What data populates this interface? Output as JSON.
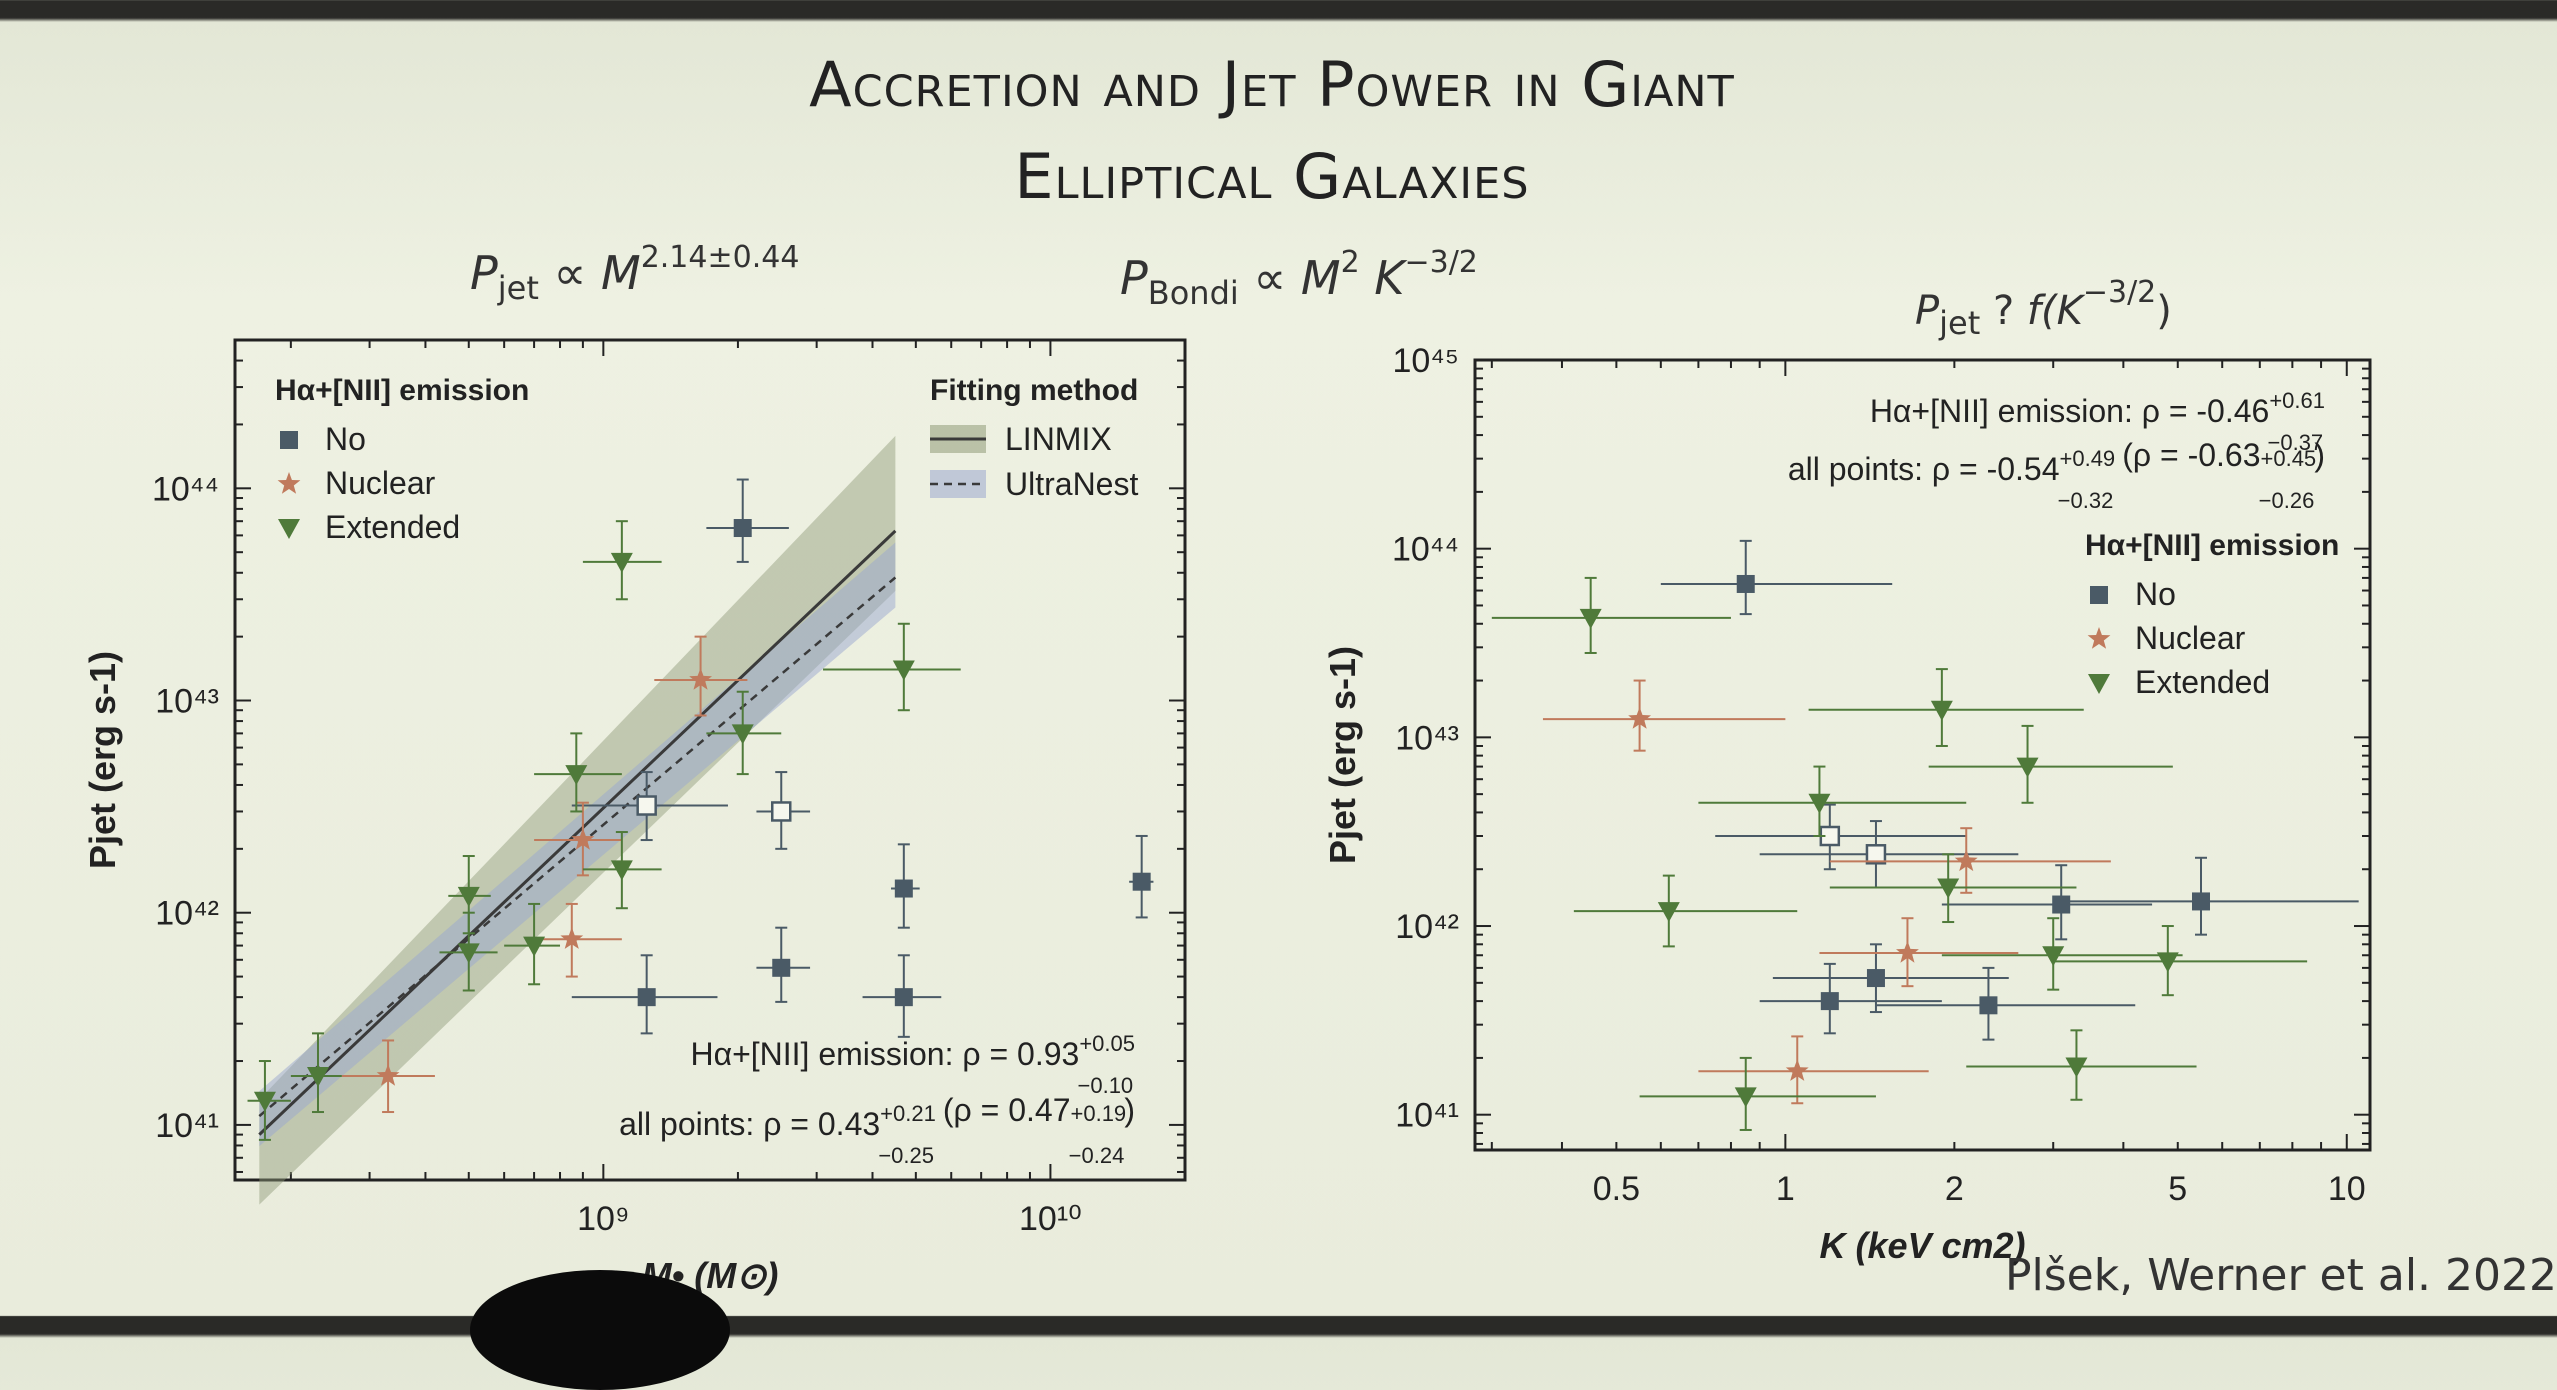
{
  "slide": {
    "title_line1": "Accretion and Jet Power in Giant",
    "title_line2": "Elliptical Galaxies",
    "eq_left": {
      "p": "P",
      "sub": "jet",
      "rel": " ∝ ",
      "m": "M",
      "sup": "2.14±0.44"
    },
    "eq_mid": {
      "p": "P",
      "sub": "Bondi",
      "rel": " ∝ ",
      "m": "M",
      "sup1": "2",
      "k": " K",
      "sup2": "−3/2"
    },
    "eq_right": {
      "p": "P",
      "sub": "jet",
      "q": " ? ",
      "f": "f(K",
      "sup": "−3/2",
      "close": ")"
    },
    "credit": "Plšek, Werner et al. 2022"
  },
  "colors": {
    "No": "#4a5a66",
    "Nuclear": "#c07a5c",
    "Extended": "#4f7a3a",
    "fit": "#3a3a3a"
  },
  "chart_data": [
    {
      "type": "scatter",
      "xlabel": "M• (M⊙)",
      "ylabel": "Pjet (erg s-1)",
      "x_log": true,
      "y_log": true,
      "xlim": [
        150000000.0,
        20000000000.0
      ],
      "ylim": [
        5.5e+40,
        5e+44
      ],
      "x_ticks": [
        {
          "v": 1000000000.0,
          "label": "10⁹"
        },
        {
          "v": 10000000000.0,
          "label": "10¹⁰"
        }
      ],
      "y_ticks": [
        {
          "v": 1e+41,
          "label": "10⁴¹"
        },
        {
          "v": 1e+42,
          "label": "10⁴²"
        },
        {
          "v": 1e+43,
          "label": "10⁴³"
        },
        {
          "v": 1e+44,
          "label": "10⁴⁴"
        }
      ],
      "legend_title": "Hα+[NII] emission",
      "legend_entries": [
        {
          "name": "No",
          "marker": "square"
        },
        {
          "name": "Nuclear",
          "marker": "star"
        },
        {
          "name": "Extended",
          "marker": "triangle"
        }
      ],
      "fit_legend_title": "Fitting method",
      "fit_legend_entries": [
        "LINMIX",
        "UltraNest"
      ],
      "annotation1": {
        "text": "Hα+[NII] emission: ρ = 0.93",
        "sup": "+0.05",
        "sub": "−0.10"
      },
      "annotation2": {
        "text": "all points: ρ = 0.43",
        "sup": "+0.21",
        "sub": "−0.25",
        "text2": " (ρ = 0.47",
        "sup2": "+0.19",
        "sub2": "−0.24",
        "close": ")"
      },
      "fit_linmix": {
        "x": [
          170000000.0,
          4500000000.0
        ],
        "y": [
          9e+40,
          6.3e+43
        ]
      },
      "fit_ultranest": {
        "x": [
          170000000.0,
          4500000000.0
        ],
        "y": [
          1.1e+41,
          3.8e+43
        ]
      },
      "points": [
        {
          "group": "No",
          "x": 2050000000.0,
          "y": 6.5e+43,
          "xerr": [
            1700000000.0,
            2600000000.0
          ],
          "yerr": [
            4.5e+43,
            1.1e+44
          ]
        },
        {
          "group": "No",
          "x": 1250000000.0,
          "y": 4e+41,
          "xerr": [
            850000000.0,
            1800000000.0
          ],
          "yerr": [
            2.7e+41,
            6.3e+41
          ]
        },
        {
          "group": "No",
          "x": 2500000000.0,
          "y": 5.5e+41,
          "xerr": [
            2200000000.0,
            2900000000.0
          ],
          "yerr": [
            3.8e+41,
            8.5e+41
          ]
        },
        {
          "group": "No",
          "x": 4700000000.0,
          "y": 1.3e+42,
          "xerr": [
            4400000000.0,
            5100000000.0
          ],
          "yerr": [
            8.5e+41,
            2.1e+42
          ]
        },
        {
          "group": "No",
          "x": 4700000000.0,
          "y": 4e+41,
          "xerr": [
            3800000000.0,
            5700000000.0
          ],
          "yerr": [
            2.6e+41,
            6.3e+41
          ]
        },
        {
          "group": "No",
          "x": 16000000000.0,
          "y": 1.4e+42,
          "xerr": [
            15000000000.0,
            17000000000.0
          ],
          "yerr": [
            9.5e+41,
            2.3e+42
          ]
        },
        {
          "group": "No_open",
          "x": 1250000000.0,
          "y": 3.2e+42,
          "xerr": [
            850000000.0,
            1900000000.0
          ],
          "yerr": [
            2.2e+42,
            4.6e+42
          ]
        },
        {
          "group": "No_open",
          "x": 2500000000.0,
          "y": 3e+42,
          "xerr": [
            2200000000.0,
            2900000000.0
          ],
          "yerr": [
            2e+42,
            4.6e+42
          ]
        },
        {
          "group": "Nuclear",
          "x": 1650000000.0,
          "y": 1.25e+43,
          "xerr": [
            1300000000.0,
            2100000000.0
          ],
          "yerr": [
            8.5e+42,
            2e+43
          ]
        },
        {
          "group": "Nuclear",
          "x": 900000000.0,
          "y": 2.2e+42,
          "xerr": [
            700000000.0,
            1100000000.0
          ],
          "yerr": [
            1.5e+42,
            3.3e+42
          ]
        },
        {
          "group": "Nuclear",
          "x": 850000000.0,
          "y": 7.5e+41,
          "xerr": [
            680000000.0,
            1100000000.0
          ],
          "yerr": [
            5e+41,
            1.1e+42
          ]
        },
        {
          "group": "Nuclear",
          "x": 330000000.0,
          "y": 1.7e+41,
          "xerr": [
            260000000.0,
            420000000.0
          ],
          "yerr": [
            1.15e+41,
            2.5e+41
          ]
        },
        {
          "group": "Extended",
          "x": 1100000000.0,
          "y": 4.5e+43,
          "xerr": [
            900000000.0,
            1350000000.0
          ],
          "yerr": [
            3e+43,
            7e+43
          ]
        },
        {
          "group": "Extended",
          "x": 4700000000.0,
          "y": 1.4e+43,
          "xerr": [
            3100000000.0,
            6300000000.0
          ],
          "yerr": [
            9e+42,
            2.3e+43
          ]
        },
        {
          "group": "Extended",
          "x": 2050000000.0,
          "y": 7e+42,
          "xerr": [
            1700000000.0,
            2500000000.0
          ],
          "yerr": [
            4.5e+42,
            1.1e+43
          ]
        },
        {
          "group": "Extended",
          "x": 870000000.0,
          "y": 4.5e+42,
          "xerr": [
            700000000.0,
            1100000000.0
          ],
          "yerr": [
            3e+42,
            7e+42
          ]
        },
        {
          "group": "Extended",
          "x": 1100000000.0,
          "y": 1.6e+42,
          "xerr": [
            900000000.0,
            1350000000.0
          ],
          "yerr": [
            1.05e+42,
            2.4e+42
          ]
        },
        {
          "group": "Extended",
          "x": 500000000.0,
          "y": 1.2e+42,
          "xerr": [
            450000000.0,
            560000000.0
          ],
          "yerr": [
            8e+41,
            1.85e+42
          ]
        },
        {
          "group": "Extended",
          "x": 500000000.0,
          "y": 6.5e+41,
          "xerr": [
            430000000.0,
            580000000.0
          ],
          "yerr": [
            4.3e+41,
            1e+42
          ]
        },
        {
          "group": "Extended",
          "x": 700000000.0,
          "y": 7e+41,
          "xerr": [
            600000000.0,
            800000000.0
          ],
          "yerr": [
            4.6e+41,
            1.1e+42
          ]
        },
        {
          "group": "Extended",
          "x": 230000000.0,
          "y": 1.7e+41,
          "xerr": [
            200000000.0,
            260000000.0
          ],
          "yerr": [
            1.15e+41,
            2.7e+41
          ]
        },
        {
          "group": "Extended",
          "x": 175000000.0,
          "y": 1.3e+41,
          "xerr": [
            160000000.0,
            200000000.0
          ],
          "yerr": [
            8.5e+40,
            2e+41
          ]
        }
      ]
    },
    {
      "type": "scatter",
      "xlabel": "K (keV cm2)",
      "ylabel": "Pjet (erg s-1)",
      "x_log": true,
      "y_log": true,
      "xlim": [
        0.28,
        11
      ],
      "ylim": [
        6.5e+40,
        1e+45
      ],
      "x_ticks": [
        {
          "v": 0.5,
          "label": "0.5"
        },
        {
          "v": 1,
          "label": "1"
        },
        {
          "v": 2,
          "label": "2"
        },
        {
          "v": 5,
          "label": "5"
        },
        {
          "v": 10,
          "label": "10"
        }
      ],
      "y_ticks": [
        {
          "v": 1e+41,
          "label": "10⁴¹"
        },
        {
          "v": 1e+42,
          "label": "10⁴²"
        },
        {
          "v": 1e+43,
          "label": "10⁴³"
        },
        {
          "v": 1e+44,
          "label": "10⁴⁴"
        },
        {
          "v": 1e+45,
          "label": "10⁴⁵"
        }
      ],
      "annotation1": {
        "text": "Hα+[NII] emission: ρ = -0.46",
        "sup": "+0.61",
        "sub": "−0.37"
      },
      "annotation2": {
        "text": "all points: ρ = -0.54",
        "sup": "+0.49",
        "sub": "−0.32",
        "text2": " (ρ = -0.63",
        "sup2": "+0.45",
        "sub2": "−0.26",
        "close": ")"
      },
      "legend_title": "Hα+[NII] emission",
      "legend_entries": [
        {
          "name": "No",
          "marker": "square"
        },
        {
          "name": "Nuclear",
          "marker": "star"
        },
        {
          "name": "Extended",
          "marker": "triangle"
        }
      ],
      "points": [
        {
          "group": "No",
          "x": 0.85,
          "y": 6.5e+43,
          "xerr": [
            0.6,
            1.55
          ],
          "yerr": [
            4.5e+43,
            1.1e+44
          ]
        },
        {
          "group": "No",
          "x": 3.1,
          "y": 1.3e+42,
          "xerr": [
            1.9,
            4.5
          ],
          "yerr": [
            8.5e+41,
            2.1e+42
          ]
        },
        {
          "group": "No",
          "x": 5.5,
          "y": 1.35e+42,
          "xerr": [
            3.2,
            10.5
          ],
          "yerr": [
            9e+41,
            2.3e+42
          ]
        },
        {
          "group": "No",
          "x": 1.45,
          "y": 5.3e+41,
          "xerr": [
            0.95,
            2.5
          ],
          "yerr": [
            3.5e+41,
            8e+41
          ]
        },
        {
          "group": "No",
          "x": 1.2,
          "y": 4e+41,
          "xerr": [
            0.9,
            1.9
          ],
          "yerr": [
            2.7e+41,
            6.3e+41
          ]
        },
        {
          "group": "No",
          "x": 2.3,
          "y": 3.8e+41,
          "xerr": [
            1.45,
            4.2
          ],
          "yerr": [
            2.5e+41,
            6e+41
          ]
        },
        {
          "group": "No_open",
          "x": 1.2,
          "y": 3e+42,
          "xerr": [
            0.75,
            2.1
          ],
          "yerr": [
            2e+42,
            4.4e+42
          ]
        },
        {
          "group": "No_open",
          "x": 1.45,
          "y": 2.4e+42,
          "xerr": [
            0.9,
            2.6
          ],
          "yerr": [
            1.6e+42,
            3.6e+42
          ]
        },
        {
          "group": "Nuclear",
          "x": 0.55,
          "y": 1.25e+43,
          "xerr": [
            0.37,
            1.0
          ],
          "yerr": [
            8.5e+42,
            2e+43
          ]
        },
        {
          "group": "Nuclear",
          "x": 2.1,
          "y": 2.2e+42,
          "xerr": [
            1.2,
            3.8
          ],
          "yerr": [
            1.5e+42,
            3.3e+42
          ]
        },
        {
          "group": "Nuclear",
          "x": 1.65,
          "y": 7.2e+41,
          "xerr": [
            1.15,
            2.6
          ],
          "yerr": [
            4.8e+41,
            1.1e+42
          ]
        },
        {
          "group": "Nuclear",
          "x": 1.05,
          "y": 1.7e+41,
          "xerr": [
            0.7,
            1.8
          ],
          "yerr": [
            1.15e+41,
            2.6e+41
          ]
        },
        {
          "group": "Extended",
          "x": 0.45,
          "y": 4.3e+43,
          "xerr": [
            0.3,
            0.8
          ],
          "yerr": [
            2.8e+43,
            7e+43
          ]
        },
        {
          "group": "Extended",
          "x": 1.9,
          "y": 1.4e+43,
          "xerr": [
            1.1,
            3.4
          ],
          "yerr": [
            9e+42,
            2.3e+43
          ]
        },
        {
          "group": "Extended",
          "x": 2.7,
          "y": 7e+42,
          "xerr": [
            1.8,
            4.9
          ],
          "yerr": [
            4.5e+42,
            1.15e+43
          ]
        },
        {
          "group": "Extended",
          "x": 1.15,
          "y": 4.5e+42,
          "xerr": [
            0.7,
            2.1
          ],
          "yerr": [
            3e+42,
            7e+42
          ]
        },
        {
          "group": "Extended",
          "x": 1.95,
          "y": 1.6e+42,
          "xerr": [
            1.2,
            3.3
          ],
          "yerr": [
            1.05e+42,
            2.4e+42
          ]
        },
        {
          "group": "Extended",
          "x": 0.62,
          "y": 1.2e+42,
          "xerr": [
            0.42,
            1.05
          ],
          "yerr": [
            7.8e+41,
            1.85e+42
          ]
        },
        {
          "group": "Extended",
          "x": 3.0,
          "y": 7e+41,
          "xerr": [
            1.9,
            5.1
          ],
          "yerr": [
            4.6e+41,
            1.1e+42
          ]
        },
        {
          "group": "Extended",
          "x": 4.8,
          "y": 6.5e+41,
          "xerr": [
            3.0,
            8.5
          ],
          "yerr": [
            4.3e+41,
            1e+42
          ]
        },
        {
          "group": "Extended",
          "x": 3.3,
          "y": 1.8e+41,
          "xerr": [
            2.1,
            5.4
          ],
          "yerr": [
            1.2e+41,
            2.8e+41
          ]
        },
        {
          "group": "Extended",
          "x": 0.85,
          "y": 1.25e+41,
          "xerr": [
            0.55,
            1.45
          ],
          "yerr": [
            8.3e+40,
            2e+41
          ]
        }
      ]
    }
  ]
}
